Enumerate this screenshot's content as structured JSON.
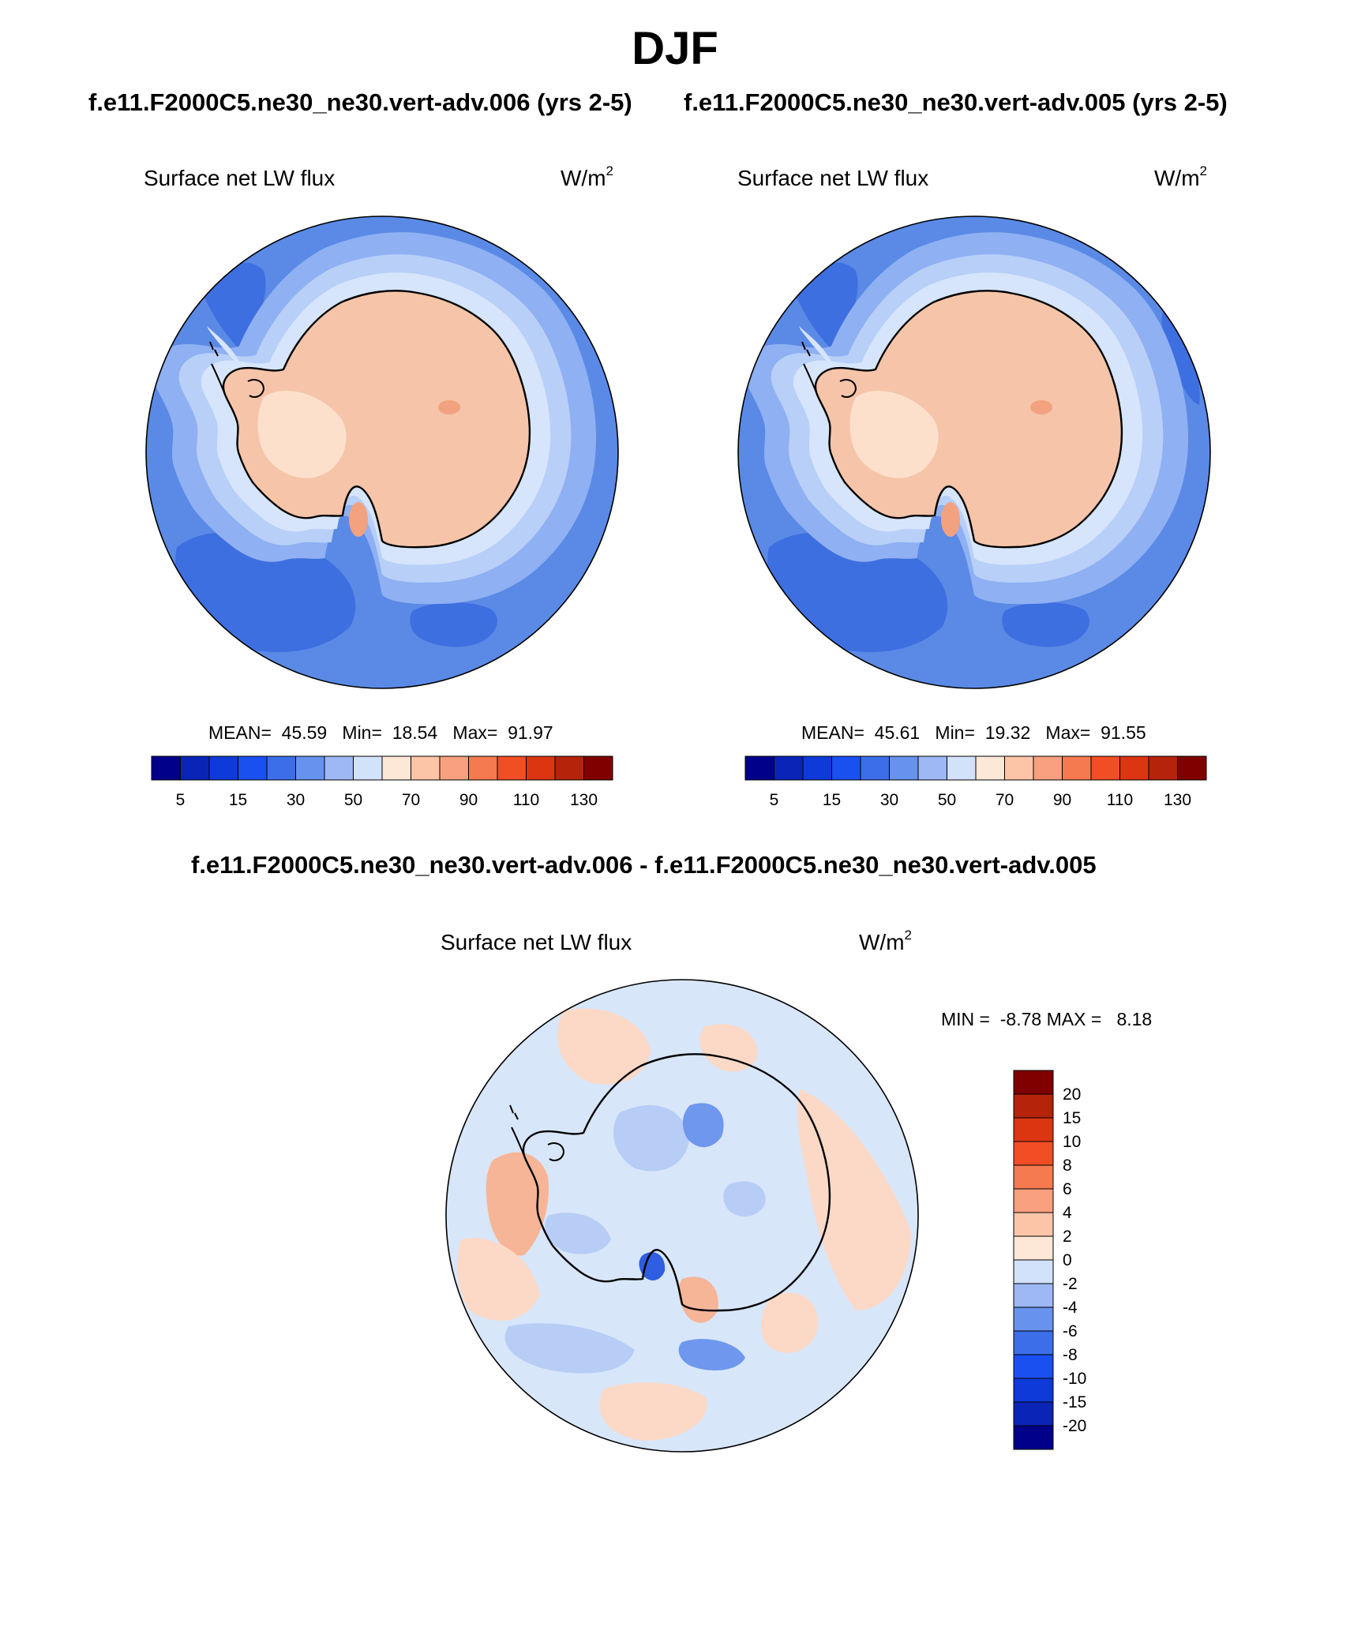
{
  "title": "DJF",
  "subtitles": {
    "left": "f.e11.F2000C5.ne30_ne30.vert-adv.006 (yrs 2-5)",
    "right": "f.e11.F2000C5.ne30_ne30.vert-adv.005 (yrs 2-5)",
    "diff": "f.e11.F2000C5.ne30_ne30.vert-adv.006 - f.e11.F2000C5.ne30_ne30.vert-adv.005"
  },
  "panels": {
    "left": {
      "variable": "Surface net LW flux",
      "units_base": "W/m",
      "units_exp": "2",
      "stats": {
        "mean_label": "MEAN=",
        "mean": "45.59",
        "min_label": "Min=",
        "min": "18.54",
        "max_label": "Max=",
        "max": "91.97"
      }
    },
    "right": {
      "variable": "Surface net LW flux",
      "units_base": "W/m",
      "units_exp": "2",
      "stats": {
        "mean_label": "MEAN=",
        "mean": "45.61",
        "min_label": "Min=",
        "min": "19.32",
        "max_label": "Max=",
        "max": "91.55"
      }
    },
    "diff": {
      "variable": "Surface net LW flux",
      "units_base": "W/m",
      "units_exp": "2",
      "stats": {
        "min_label": "MIN =",
        "min": "-8.78",
        "max_label": "MAX =",
        "max": "8.18"
      }
    }
  },
  "colorbars": {
    "main": {
      "colors": [
        "#00008b",
        "#0b24b8",
        "#0d3ad8",
        "#1a4ff0",
        "#3b6ee8",
        "#6792ee",
        "#9db8f5",
        "#d2e2fb",
        "#fde7d6",
        "#fcc5a8",
        "#f9a07e",
        "#f57a50",
        "#f24e25",
        "#dc3512",
        "#b4230a",
        "#800000"
      ],
      "labels": [
        "5",
        "15",
        "30",
        "50",
        "70",
        "90",
        "110",
        "130"
      ]
    },
    "diff": {
      "colors": [
        "#800000",
        "#b4230a",
        "#dc3512",
        "#f24e25",
        "#f57a50",
        "#f9a07e",
        "#fcc5a8",
        "#fde7d6",
        "#d2e2fb",
        "#9db8f5",
        "#6792ee",
        "#3b6ee8",
        "#1a4ff0",
        "#0d3ad8",
        "#0b24b8",
        "#00008b"
      ],
      "labels": [
        "20",
        "15",
        "10",
        "8",
        "6",
        "4",
        "2",
        "0",
        "-2",
        "-4",
        "-6",
        "-8",
        "-10",
        "-15",
        "-20"
      ]
    }
  },
  "map_colors": {
    "ocean": "#5a8ae6",
    "ocean_dark": "#3e6fe0",
    "ring_1": "#8fb0f2",
    "ring_2": "#b8cff8",
    "ring_3": "#d6e5fb",
    "land": "#f6c4a8",
    "land_light": "#fde0cc",
    "land_warm": "#f2a27f",
    "coast": "#000000",
    "diff_base": "#d8e6fa",
    "diff_pos": "#fbd9c6",
    "diff_pos2": "#f6b596",
    "diff_neg": "#b7cdf6",
    "diff_neg2": "#6f97ee",
    "diff_neg3": "#2f5fe0"
  }
}
